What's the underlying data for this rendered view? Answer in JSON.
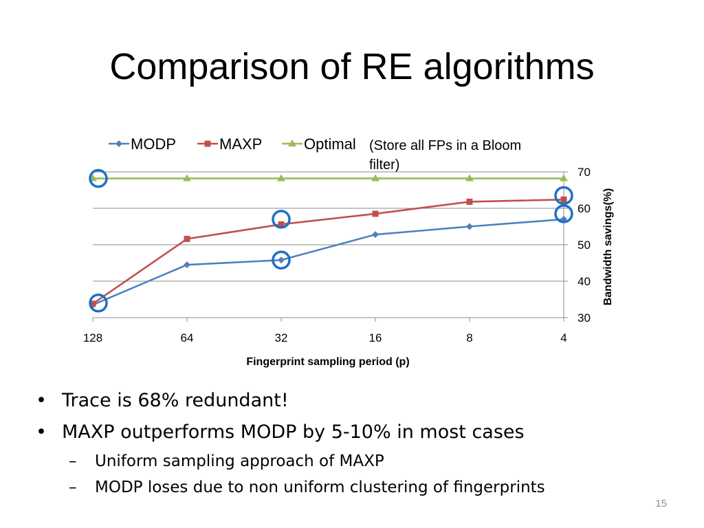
{
  "slide": {
    "title": "Comparison of RE algorithms",
    "page_number": "15",
    "bullets": [
      {
        "level": 1,
        "text": "Trace is 68% redundant!"
      },
      {
        "level": 1,
        "text": "MAXP outperforms MODP by 5-10% in most cases"
      },
      {
        "level": 2,
        "text": "Uniform sampling approach of MAXP"
      },
      {
        "level": 2,
        "text": "MODP loses due to non uniform clustering of fingerprints"
      }
    ]
  },
  "chart_data": {
    "type": "line",
    "categories": [
      "128",
      "64",
      "32",
      "16",
      "8",
      "4"
    ],
    "series": [
      {
        "name": "MODP",
        "values": [
          33.5,
          44.5,
          45.8,
          52.8,
          55.0,
          57.0
        ],
        "color": "#4f81bd",
        "marker": "diamond"
      },
      {
        "name": "MAXP",
        "values": [
          33.8,
          51.6,
          55.6,
          58.5,
          61.8,
          62.4
        ],
        "color": "#c0504d",
        "marker": "square"
      },
      {
        "name": "Optimal",
        "values": [
          68.2,
          68.2,
          68.2,
          68.2,
          68.2,
          68.2
        ],
        "color": "#9bbb59",
        "marker": "triangle"
      }
    ],
    "annotation": "(Store all FPs in a Bloom filter)",
    "xlabel": "Fingerprint sampling period (p)",
    "ylabel": "Bandwidth savings(%)",
    "ylim": [
      30,
      70
    ],
    "yticks": [
      "30",
      "40",
      "50",
      "60",
      "70"
    ],
    "y_axis_side": "right",
    "grid": true,
    "legend_position": "top-left",
    "highlight_color": "#1f6fc5",
    "highlights": [
      {
        "category": "128",
        "value": 68.2
      },
      {
        "category": "128",
        "value": 34.0
      },
      {
        "category": "32",
        "value": 57.0
      },
      {
        "category": "32",
        "value": 45.8
      },
      {
        "category": "4",
        "value": 63.5
      },
      {
        "category": "4",
        "value": 58.5
      }
    ]
  }
}
